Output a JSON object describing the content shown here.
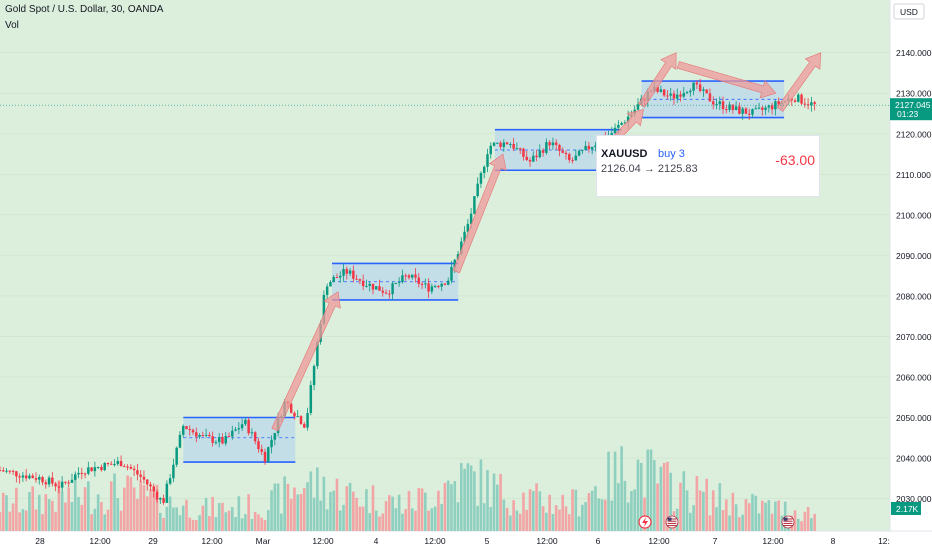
{
  "header": {
    "symbol_title": "Gold Spot / U.S. Dollar, 30, OANDA",
    "volume_label": "Vol"
  },
  "price_axis": {
    "currency": "USD",
    "tick_labels": [
      "2030.000",
      "2040.000",
      "2050.000",
      "2060.000",
      "2070.000",
      "2080.000",
      "2090.000",
      "2100.000",
      "2110.000",
      "2120.000",
      "2130.000",
      "2140.000"
    ],
    "current_price": "2127.045",
    "countdown": "01:23",
    "volume_value": "2.17K"
  },
  "time_axis": {
    "tick_labels": [
      "28",
      "12:00",
      "29",
      "12:00",
      "Mar",
      "12:00",
      "4",
      "12:00",
      "5",
      "12:00",
      "6",
      "12:00",
      "7",
      "12:00",
      "8",
      "12:"
    ]
  },
  "position": {
    "symbol": "XAUUSD",
    "side": "buy 3",
    "prices": "2126.04 → 2125.83",
    "pnl": "-63.00"
  },
  "colors": {
    "background": "#dcefdc",
    "candle_up": "#089981",
    "candle_down": "#f23645",
    "vol_up": "#8fcfbf",
    "vol_down": "#f2a5a5",
    "box_fill": "#bcd8ec",
    "box_stroke": "#2962ff",
    "arrow": "#ef9a9a",
    "price_badge": "#089981"
  },
  "chart_data": {
    "type": "candlestick",
    "symbol": "Gold Spot / U.S. Dollar",
    "interval": "30",
    "ylim": [
      2022,
      2153
    ],
    "price_path": [
      {
        "x": 0,
        "y": 2037
      },
      {
        "x": 1,
        "y": 2036
      },
      {
        "x": 2,
        "y": 2035
      },
      {
        "x": 3,
        "y": 2033
      },
      {
        "x": 4,
        "y": 2037
      },
      {
        "x": 5,
        "y": 2038
      },
      {
        "x": 6,
        "y": 2039
      },
      {
        "x": 7,
        "y": 2035
      },
      {
        "x": 8,
        "y": 2029
      },
      {
        "x": 9,
        "y": 2048
      },
      {
        "x": 10,
        "y": 2045
      },
      {
        "x": 11,
        "y": 2044
      },
      {
        "x": 12,
        "y": 2049
      },
      {
        "x": 13,
        "y": 2040
      },
      {
        "x": 14,
        "y": 2054
      },
      {
        "x": 15,
        "y": 2048
      },
      {
        "x": 16,
        "y": 2083
      },
      {
        "x": 17,
        "y": 2086
      },
      {
        "x": 18,
        "y": 2083
      },
      {
        "x": 19,
        "y": 2081
      },
      {
        "x": 20,
        "y": 2085
      },
      {
        "x": 21,
        "y": 2082
      },
      {
        "x": 22,
        "y": 2084
      },
      {
        "x": 23,
        "y": 2098
      },
      {
        "x": 24,
        "y": 2117
      },
      {
        "x": 25,
        "y": 2118
      },
      {
        "x": 26,
        "y": 2113
      },
      {
        "x": 27,
        "y": 2118
      },
      {
        "x": 28,
        "y": 2113
      },
      {
        "x": 29,
        "y": 2117
      },
      {
        "x": 30,
        "y": 2120
      },
      {
        "x": 31,
        "y": 2125
      },
      {
        "x": 32,
        "y": 2131
      },
      {
        "x": 33,
        "y": 2129
      },
      {
        "x": 34,
        "y": 2132
      },
      {
        "x": 35,
        "y": 2128
      },
      {
        "x": 36,
        "y": 2126
      },
      {
        "x": 37,
        "y": 2125
      },
      {
        "x": 38,
        "y": 2127
      },
      {
        "x": 39,
        "y": 2129
      },
      {
        "x": 40,
        "y": 2127
      }
    ],
    "volume_profile": [
      {
        "x": 0,
        "v": 0.3
      },
      {
        "x": 3,
        "v": 0.38
      },
      {
        "x": 6,
        "v": 0.45
      },
      {
        "x": 8,
        "v": 0.32
      },
      {
        "x": 10,
        "v": 0.25
      },
      {
        "x": 13,
        "v": 0.28
      },
      {
        "x": 15,
        "v": 0.55
      },
      {
        "x": 17,
        "v": 0.42
      },
      {
        "x": 20,
        "v": 0.3
      },
      {
        "x": 23,
        "v": 0.62
      },
      {
        "x": 25,
        "v": 0.4
      },
      {
        "x": 28,
        "v": 0.3
      },
      {
        "x": 31,
        "v": 0.75
      },
      {
        "x": 33,
        "v": 0.5
      },
      {
        "x": 36,
        "v": 0.32
      },
      {
        "x": 40,
        "v": 0.2
      }
    ],
    "consolidation_boxes": [
      {
        "x_start": 9,
        "x_end": 14.5,
        "low": 2039,
        "high": 2050,
        "mid": 2045
      },
      {
        "x_start": 16.3,
        "x_end": 22.5,
        "low": 2079,
        "high": 2088,
        "mid": 2083.5
      },
      {
        "x_start": 24.3,
        "x_end": 30.5,
        "low": 2111,
        "high": 2121,
        "mid": 2116
      },
      {
        "x_start": 31.5,
        "x_end": 38.5,
        "low": 2124,
        "high": 2133,
        "mid": 2128.5
      }
    ],
    "trend_arrows": [
      {
        "from": [
          13.5,
          2047
        ],
        "to": [
          16.6,
          2081
        ]
      },
      {
        "from": [
          22.4,
          2086
        ],
        "to": [
          24.7,
          2115
        ]
      },
      {
        "from": [
          29.7,
          2116
        ],
        "to": [
          31.6,
          2126
        ]
      },
      {
        "from": [
          31.5,
          2127
        ],
        "to": [
          33.2,
          2140
        ]
      },
      {
        "from": [
          33.3,
          2137
        ],
        "to": [
          38.1,
          2130
        ]
      },
      {
        "from": [
          38.3,
          2126
        ],
        "to": [
          40.3,
          2140
        ]
      }
    ],
    "last_price": 2127.045,
    "x_max": 43.7
  }
}
